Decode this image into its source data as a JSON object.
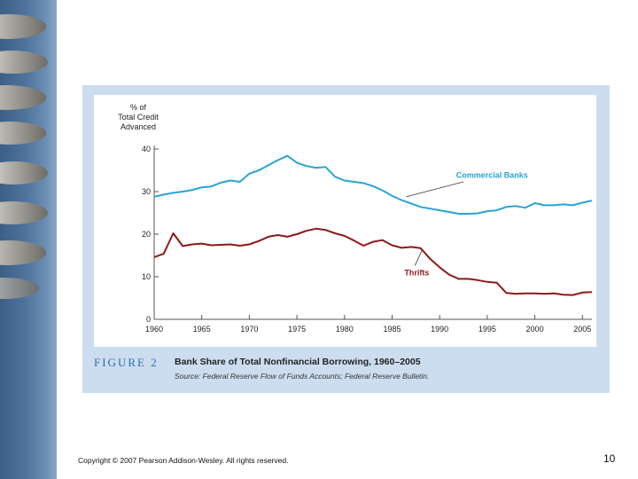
{
  "colors": {
    "commercial": "#29a3d6",
    "thrifts": "#8b1a1a",
    "panel": "#cdddf0",
    "figure_label": "#2a6fb5"
  },
  "figure": {
    "label": "FIGURE 2",
    "title": "Bank Share of Total Nonfinancial Borrowing, 1960–2005",
    "source": "Source: Federal Reserve Flow of Funds Accounts; Federal Reserve Bulletin."
  },
  "footer": {
    "copyright": "Copyright © 2007 Pearson Addison-Wesley. All rights reserved.",
    "page_number": "10"
  },
  "chart_data": {
    "type": "line",
    "title": "Bank Share of Total Nonfinancial Borrowing, 1960–2005",
    "ylabel_lines": [
      "% of",
      "Total Credit",
      "Advanced"
    ],
    "xlabel": "",
    "xlim": [
      1960,
      2006
    ],
    "ylim": [
      0,
      40
    ],
    "xticks": [
      1960,
      1965,
      1970,
      1975,
      1980,
      1985,
      1990,
      1995,
      2000,
      2005
    ],
    "yticks": [
      0,
      10,
      20,
      30,
      40
    ],
    "series": [
      {
        "name": "Commercial Banks",
        "color": "#29a3d6",
        "x": [
          1960,
          1961,
          1962,
          1963,
          1964,
          1965,
          1966,
          1967,
          1968,
          1969,
          1970,
          1971,
          1972,
          1973,
          1974,
          1975,
          1976,
          1977,
          1978,
          1979,
          1980,
          1981,
          1982,
          1983,
          1984,
          1985,
          1986,
          1987,
          1988,
          1989,
          1990,
          1991,
          1992,
          1993,
          1994,
          1995,
          1996,
          1997,
          1998,
          1999,
          2000,
          2001,
          2002,
          2003,
          2004,
          2005,
          2006
        ],
        "values": [
          28.8,
          29.3,
          29.7,
          30.0,
          30.4,
          31.0,
          31.2,
          32.1,
          32.6,
          32.3,
          34.2,
          35.0,
          36.2,
          37.4,
          38.4,
          36.8,
          36.0,
          35.6,
          35.8,
          33.5,
          32.6,
          32.3,
          32.0,
          31.3,
          30.3,
          29.0,
          28.0,
          27.2,
          26.4,
          26.0,
          25.6,
          25.2,
          24.8,
          24.8,
          24.9,
          25.4,
          25.6,
          26.4,
          26.6,
          26.2,
          27.3,
          26.8,
          26.8,
          27.0,
          26.8,
          27.4,
          27.9
        ]
      },
      {
        "name": "Thrifts",
        "color": "#8b1a1a",
        "x": [
          1960,
          1961,
          1962,
          1963,
          1964,
          1965,
          1966,
          1967,
          1968,
          1969,
          1970,
          1971,
          1972,
          1973,
          1974,
          1975,
          1976,
          1977,
          1978,
          1979,
          1980,
          1981,
          1982,
          1983,
          1984,
          1985,
          1986,
          1987,
          1988,
          1989,
          1990,
          1991,
          1992,
          1993,
          1994,
          1995,
          1996,
          1997,
          1998,
          1999,
          2000,
          2001,
          2002,
          2003,
          2004,
          2005,
          2006
        ],
        "values": [
          14.6,
          15.4,
          20.2,
          17.2,
          17.6,
          17.8,
          17.4,
          17.5,
          17.6,
          17.3,
          17.6,
          18.4,
          19.4,
          19.8,
          19.4,
          20.0,
          20.8,
          21.3,
          21.0,
          20.2,
          19.6,
          18.5,
          17.3,
          18.2,
          18.6,
          17.4,
          16.8,
          17.0,
          16.7,
          14.2,
          12.2,
          10.5,
          9.5,
          9.5,
          9.2,
          8.8,
          8.6,
          6.2,
          6.0,
          6.1,
          6.1,
          6.0,
          6.1,
          5.8,
          5.7,
          6.3,
          6.4
        ]
      }
    ],
    "annotations": [
      {
        "text": "Commercial Banks",
        "series": "Commercial Banks",
        "at_x": 1986.5,
        "at_y": 28.8
      },
      {
        "text": "Thrifts",
        "series": "Thrifts",
        "at_x": 1988.2,
        "at_y": 16.5
      }
    ]
  }
}
